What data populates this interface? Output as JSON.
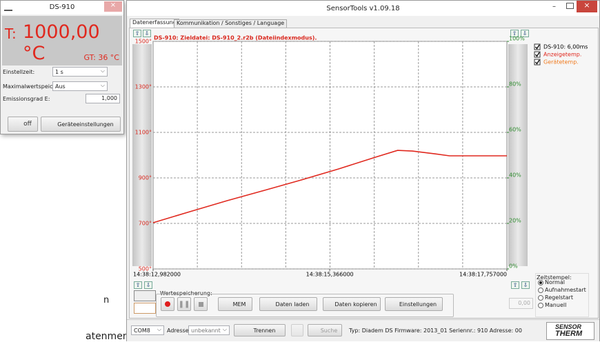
{
  "device_window": {
    "title": "DS-910",
    "temperature_prefix": "T:",
    "temperature": "1000,00 °C",
    "device_temp": "GT: 36 °C",
    "fields": [
      {
        "label": "Einstellzeit:",
        "value": "1 s"
      },
      {
        "label": "Maximalwertspeicher:",
        "value": "Aus"
      },
      {
        "label": "Emissionsgrad E:",
        "value": "1,000"
      }
    ],
    "buttons": [
      "off",
      "Geräteeinstellungen"
    ]
  },
  "main_window": {
    "title": "SensorTools v1.09.18",
    "tabs": [
      "Datenerfassung",
      "Kommunikation / Sonstiges / Language"
    ],
    "recording": {
      "label": "Wertespeicherung:",
      "buttons": [
        "MEM",
        "Daten laden",
        "Daten kopieren",
        "Einstellungen"
      ]
    },
    "counter": "0,00",
    "timestamp": {
      "label": "Zeitstempel:",
      "options": [
        "Normal",
        "Aufnahmestart",
        "Regelstart",
        "Manuell"
      ],
      "selected": 0
    },
    "status_bar": {
      "port": "COM8",
      "address_label": "Adresse:",
      "address": "unbekannt",
      "buttons": [
        "Trennen",
        "Suche"
      ],
      "info": "Typ: Diadem DS Firmware: 2013_01 Seriennr.: 910 Adresse: 00",
      "logo": [
        "SENSOR",
        "THERM"
      ]
    }
  },
  "background_text": [
    "n",
    "atenmengen"
  ],
  "chart_data": {
    "type": "line",
    "title": "DS-910: Zieldatei: DS-910_2.r2b (Dateiindexmodus).",
    "x": [
      52692.982,
      52693.482,
      52693.982,
      52694.482,
      52694.982,
      52695.482,
      52695.982,
      52696.282,
      52696.482,
      52696.782,
      52696.982,
      52697.482,
      52697.757
    ],
    "series": [
      {
        "name": "Anzeigetemp.",
        "color": "#e0281e",
        "values": [
          703,
          752,
          800,
          845,
          891,
          939,
          991,
          1021,
          1018,
          1006,
          997,
          997,
          997
        ]
      }
    ],
    "legend_extra": [
      {
        "label": "DS-910: 6,00ms",
        "color": "#000000"
      },
      {
        "label": "Gerätetemp.",
        "color": "#f07a1e"
      }
    ],
    "xlim": [
      52692.982,
      52697.757
    ],
    "xticks": [
      {
        "value": 52692.982,
        "label": "14:38:12,982000"
      },
      {
        "value": 52695.366,
        "label": "14:38:15,366000"
      },
      {
        "value": 52697.757,
        "label": "14:38:17,757000"
      }
    ],
    "ylim": [
      500,
      1500
    ],
    "yticks": [
      {
        "value": 500,
        "label": "500°"
      },
      {
        "value": 700,
        "label": "700°"
      },
      {
        "value": 900,
        "label": "900°"
      },
      {
        "value": 1100,
        "label": "1100°"
      },
      {
        "value": 1300,
        "label": "1300°"
      },
      {
        "value": 1500,
        "label": "1500°"
      }
    ],
    "y2lim": [
      0,
      100
    ],
    "y2ticks": [
      {
        "value": 0,
        "label": "0%"
      },
      {
        "value": 20,
        "label": "20%"
      },
      {
        "value": 40,
        "label": "40%"
      },
      {
        "value": 60,
        "label": "60%"
      },
      {
        "value": 80,
        "label": "80%"
      },
      {
        "value": 100,
        "label": "100%"
      }
    ],
    "axis_color": "#d9261c",
    "axis2_color": "#2e8b2e",
    "grid": true
  }
}
